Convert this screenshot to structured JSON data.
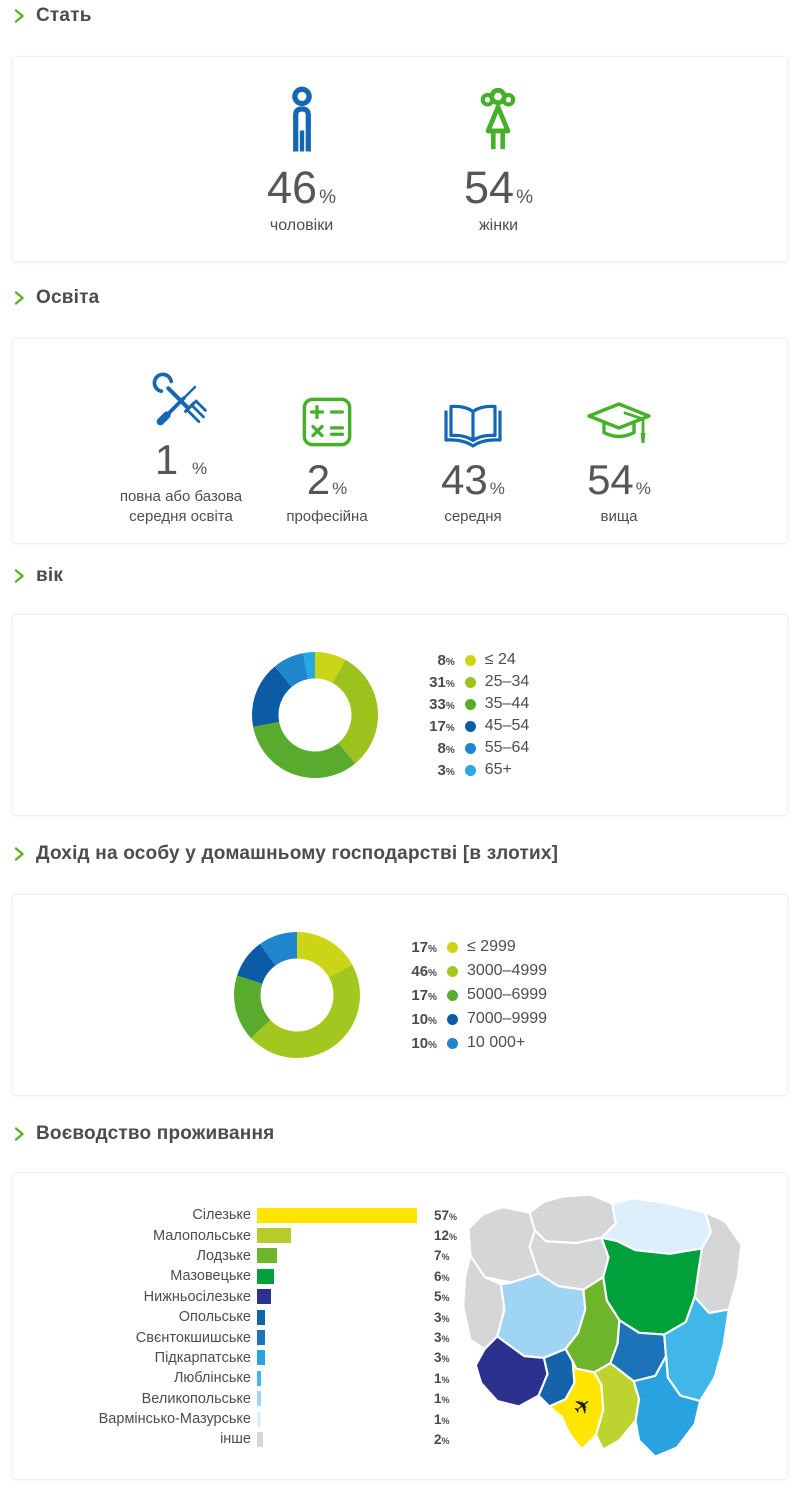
{
  "ui": {
    "percent_sign": "%"
  },
  "colors": {
    "accent_blue": "#1467b3",
    "accent_green": "#45b029",
    "chevron_green": "#61ad23",
    "text_dark": "#4d4d4f"
  },
  "sections": {
    "gender": {
      "title": "Стать",
      "items": [
        {
          "icon": "male-icon",
          "value": "46",
          "label": "чоловіки",
          "color": "#1467b3"
        },
        {
          "icon": "female-icon",
          "value": "54",
          "label": "жінки",
          "color": "#45b029"
        }
      ]
    },
    "education": {
      "title": "Освіта",
      "items": [
        {
          "icon": "tools-icon",
          "value": "1",
          "label": "повна або базова середня освіта",
          "color": "#1467b3"
        },
        {
          "icon": "calculator-icon",
          "value": "2",
          "label": "професійна",
          "color": "#45b029"
        },
        {
          "icon": "book-icon",
          "value": "43",
          "label": "середня",
          "color": "#1467b3"
        },
        {
          "icon": "graduation-cap-icon",
          "value": "54",
          "label": "вища",
          "color": "#45b029"
        }
      ]
    },
    "age": {
      "title": "вік"
    },
    "income": {
      "title": "Дохід на особу у домашньому господарстві [в злотих]"
    },
    "voivodeship": {
      "title": "Воєводство проживання"
    }
  },
  "chart_data": [
    {
      "id": "age",
      "type": "donut",
      "title": "вік",
      "labels": [
        "≤ 24",
        "25–34",
        "35–44",
        "45–54",
        "55–64",
        "65+"
      ],
      "values": [
        8,
        31,
        33,
        17,
        8,
        3
      ],
      "colors": [
        "#cbd516",
        "#9cc21e",
        "#58ab2c",
        "#0c5ba6",
        "#1f86cd",
        "#27a8e0"
      ],
      "legend_position": "right",
      "start_angle_deg": -90,
      "direction": "clockwise"
    },
    {
      "id": "income",
      "type": "donut",
      "title": "Дохід на особу у домашньому господарстві [в злотих]",
      "labels": [
        "≤ 2999",
        "3000–4999",
        "5000–6999",
        "7000–9999",
        "10 000+"
      ],
      "values": [
        17,
        46,
        17,
        10,
        10
      ],
      "colors": [
        "#cbd516",
        "#a2c81f",
        "#58ab2c",
        "#0c5ba6",
        "#1f86cd"
      ],
      "legend_position": "right",
      "start_angle_deg": -90,
      "direction": "clockwise"
    },
    {
      "id": "voivodeship",
      "type": "bar",
      "title": "Воєводство проживання",
      "orientation": "horizontal",
      "unit": "%",
      "categories": [
        "Сілезьке",
        "Малопольське",
        "Лодзьке",
        "Мазовецьке",
        "Нижньосілезьке",
        "Опольське",
        "Свєнтокшишське",
        "Підкарпатське",
        "Люблінське",
        "Великопольське",
        "Вармінсько-Мазурське",
        "інше"
      ],
      "values": [
        57,
        12,
        7,
        6,
        5,
        3,
        3,
        3,
        1,
        1,
        1,
        2
      ],
      "colors": [
        "#ffe500",
        "#b7cc2b",
        "#6eb52c",
        "#00a03b",
        "#2a318f",
        "#1464ac",
        "#1d73ba",
        "#29a3e0",
        "#41b6e8",
        "#9fd5f2",
        "#ddeffa",
        "#d4d6d7"
      ],
      "xmax": 60
    }
  ],
  "map": {
    "regions": [
      {
        "category": "інше",
        "color": "#d4d6d7"
      },
      {
        "category": "інше",
        "color": "#d4d6d7"
      },
      {
        "category": "інше",
        "color": "#d4d6d7"
      },
      {
        "category": "Вармінсько-Мазурське",
        "color": "#ddeffa"
      },
      {
        "category": "інше",
        "color": "#d4d6d7"
      },
      {
        "category": "інше",
        "color": "#d4d6d7"
      },
      {
        "category": "Великопольське",
        "color": "#9fd5f2"
      },
      {
        "category": "Мазовецьке",
        "color": "#00a03b"
      },
      {
        "category": "Лодзьке",
        "color": "#6eb52c"
      },
      {
        "category": "Нижньосілезьке",
        "color": "#2a318f"
      },
      {
        "category": "Опольське",
        "color": "#1464ac"
      },
      {
        "category": "Сілезьке",
        "color": "#ffe500"
      },
      {
        "category": "Свєнтокшишське",
        "color": "#1d73ba"
      },
      {
        "category": "Малопольське",
        "color": "#bcd330"
      },
      {
        "category": "Люблінське",
        "color": "#41b6e8"
      },
      {
        "category": "Підкарпатське",
        "color": "#29a3e0"
      }
    ]
  }
}
